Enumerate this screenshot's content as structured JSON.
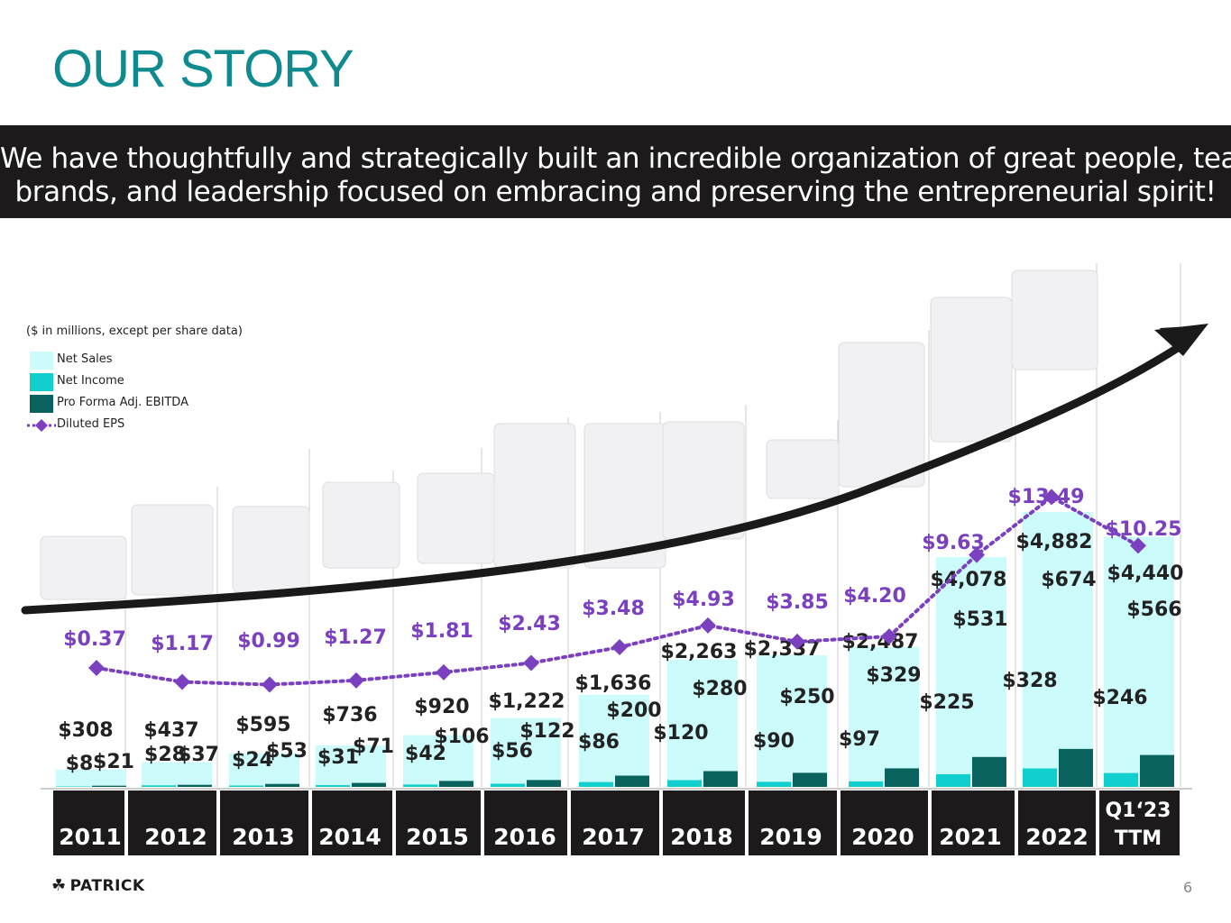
{
  "title": "OUR STORY",
  "banner": {
    "line1": "We have thoughtfully and strategically built an incredible organization of great people, teams,",
    "line2": "brands, and leadership focused on embracing and preserving the entrepreneurial spirit!"
  },
  "legend": {
    "note": "($ in millions, except per share data)",
    "items": [
      {
        "label": "Net Sales",
        "color": "#ccfbfb"
      },
      {
        "label": "Net Income",
        "color": "#12cfcf"
      },
      {
        "label": "Pro Forma Adj. EBITDA",
        "color": "#09625e"
      },
      {
        "label": "Diluted EPS",
        "color": "#7a40bf"
      }
    ]
  },
  "chart_data": {
    "type": "bar",
    "title": "",
    "categories": [
      "2011",
      "2012",
      "2013",
      "2014",
      "2015",
      "2016",
      "2017",
      "2018",
      "2019",
      "2020",
      "2021",
      "2022",
      "Q1'23 TTM"
    ],
    "category_labels": [
      [
        "2011"
      ],
      [
        "2012"
      ],
      [
        "2013"
      ],
      [
        "2014"
      ],
      [
        "2015"
      ],
      [
        "2016"
      ],
      [
        "2017"
      ],
      [
        "2018"
      ],
      [
        "2019"
      ],
      [
        "2020"
      ],
      [
        "2021"
      ],
      [
        "2022"
      ],
      [
        "Q1‘23",
        "TTM"
      ]
    ],
    "series": [
      {
        "name": "Net Sales",
        "values": [
          308,
          437,
          595,
          736,
          920,
          1222,
          1636,
          2263,
          2337,
          2487,
          4078,
          4882,
          4440
        ],
        "labels": [
          "$308",
          "$437",
          "$595",
          "$736",
          "$920",
          "$1,222",
          "$1,636",
          "$2,263",
          "$2,337",
          "$2,487",
          "$4,078",
          "$4,882",
          "$4,440"
        ]
      },
      {
        "name": "Net Income",
        "values": [
          8,
          28,
          24,
          31,
          42,
          56,
          86,
          120,
          90,
          97,
          225,
          328,
          246
        ],
        "labels": [
          "$8",
          "$28",
          "$24",
          "$31",
          "$42",
          "$56",
          "$86",
          "$120",
          "$90",
          "$97",
          "$225",
          "$328",
          "$246"
        ]
      },
      {
        "name": "Pro Forma Adj. EBITDA",
        "values": [
          21,
          37,
          53,
          71,
          106,
          122,
          200,
          280,
          250,
          329,
          531,
          674,
          566
        ],
        "labels": [
          "$21",
          "$37",
          "$53",
          "$71",
          "$106",
          "$122",
          "$200",
          "$280",
          "$250",
          "$329",
          "$531",
          "$674",
          "$566"
        ]
      },
      {
        "name": "Diluted EPS",
        "values": [
          0.37,
          1.17,
          0.99,
          1.27,
          1.81,
          2.43,
          3.48,
          4.93,
          3.85,
          4.2,
          9.63,
          13.49,
          10.25
        ],
        "labels": [
          "$0.37",
          "$1.17",
          "$0.99",
          "$1.27",
          "$1.81",
          "$2.43",
          "$3.48",
          "$4.93",
          "$3.85",
          "$4.20",
          "$9.63",
          "$13.49",
          "$10.25"
        ]
      }
    ],
    "xlabel": "",
    "ylabel": ""
  },
  "logo_text": "PATRICK",
  "page_number": "6"
}
